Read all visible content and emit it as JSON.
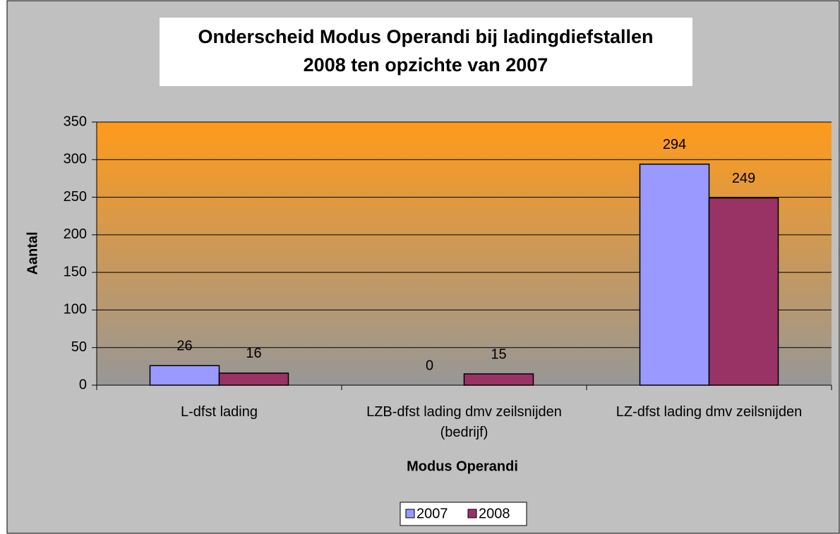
{
  "chart_data": {
    "type": "bar",
    "title": [
      "Onderscheid Modus Operandi bij ladingdiefstallen",
      "2008 ten opzichte van 2007"
    ],
    "x_label": "Modus Operandi",
    "y_label": "Aantal",
    "categories": [
      "L-dfst lading",
      "LZB-dfst lading dmv zeilsnijden (bedrijf)",
      "LZ-dfst lading dmv zeilsnijden"
    ],
    "series": [
      {
        "name": "2007",
        "color": "#9999ff",
        "values": [
          26,
          0,
          294
        ]
      },
      {
        "name": "2008",
        "color": "#993366",
        "values": [
          16,
          15,
          249
        ]
      }
    ],
    "ylim": [
      0,
      350
    ],
    "yticks": [
      0,
      50,
      100,
      150,
      200,
      250,
      300,
      350
    ],
    "grid": true,
    "legend": "bottom"
  }
}
